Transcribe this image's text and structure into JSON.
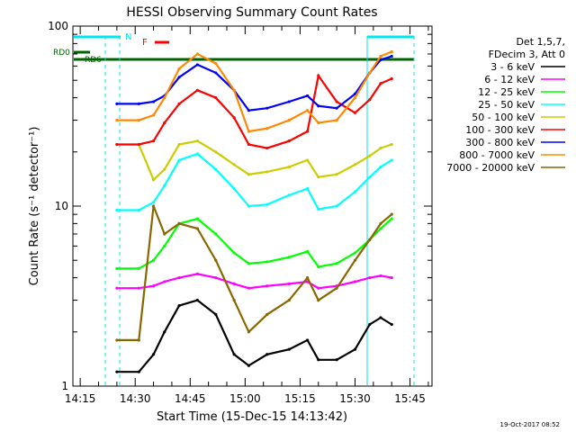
{
  "chart_data": {
    "type": "line",
    "title": "HESSI Observing Summary Count Rates",
    "xlabel": "Start Time (15-Dec-15 14:13:42)",
    "ylabel": "Count Rate (s⁻¹ detector⁻¹)",
    "yscale": "log",
    "ylim": [
      1,
      100
    ],
    "xlim_minutes_after_1413": [
      0,
      98
    ],
    "x_tick_labels": [
      "14:15",
      "14:30",
      "14:45",
      "15:00",
      "15:15",
      "15:30",
      "15:45"
    ],
    "y_tick_labels": [
      "1",
      "10",
      "100"
    ],
    "legend_position": "right",
    "legend_header": [
      "Det 1,5,7,",
      "FDecim 3, Att 0"
    ],
    "timestamp": "19-Oct-2017 08:52",
    "flag_labels": {
      "N": "N",
      "F": "F",
      "RD0": "RD0",
      "RD6": "RD6"
    },
    "x": [
      "14:25",
      "14:31",
      "14:35",
      "14:38",
      "14:42",
      "14:47",
      "14:52",
      "14:57",
      "15:01",
      "15:06",
      "15:12",
      "15:17",
      "15:20",
      "15:25",
      "15:30",
      "15:34",
      "15:37",
      "15:40"
    ],
    "series": [
      {
        "name": "3 - 6 keV",
        "color": "#000000",
        "values": [
          1.2,
          1.2,
          1.5,
          2.0,
          2.8,
          3.0,
          2.5,
          1.5,
          1.3,
          1.5,
          1.6,
          1.8,
          1.4,
          1.4,
          1.6,
          2.2,
          2.4,
          2.2
        ]
      },
      {
        "name": "6 - 12 keV",
        "color": "#ff00ff",
        "values": [
          3.5,
          3.5,
          3.6,
          3.8,
          4.0,
          4.2,
          4.0,
          3.7,
          3.5,
          3.6,
          3.7,
          3.8,
          3.5,
          3.6,
          3.8,
          4.0,
          4.1,
          4.0
        ]
      },
      {
        "name": "12 - 25 keV",
        "color": "#00ff00",
        "values": [
          4.5,
          4.5,
          5.0,
          6.0,
          8.0,
          8.5,
          7.0,
          5.5,
          4.8,
          4.9,
          5.2,
          5.6,
          4.6,
          4.8,
          5.5,
          6.5,
          7.5,
          8.5
        ]
      },
      {
        "name": "25 - 50 keV",
        "color": "#00ffff",
        "values": [
          9.5,
          9.5,
          10.5,
          13.0,
          18.0,
          19.5,
          16.0,
          12.5,
          10.0,
          10.2,
          11.5,
          12.5,
          9.6,
          10.0,
          12.0,
          14.5,
          16.5,
          18.0
        ]
      },
      {
        "name": "50 - 100 keV",
        "color": "#cccc00",
        "values": [
          22,
          22,
          14,
          16,
          22,
          23,
          20,
          17,
          15,
          15.5,
          16.5,
          18,
          14.5,
          15,
          17,
          19,
          21,
          22
        ]
      },
      {
        "name": "100 - 300 keV",
        "color": "#ff0000",
        "values": [
          22,
          22,
          23,
          29,
          37,
          44,
          40,
          31,
          22,
          21,
          23,
          26,
          53,
          38,
          33,
          39,
          48,
          51
        ]
      },
      {
        "name": "300 - 800 keV",
        "color": "#0000ff",
        "values": [
          37,
          37,
          38,
          41,
          52,
          61,
          55,
          44,
          34,
          35,
          38,
          41,
          36,
          35,
          42,
          55,
          65,
          68
        ]
      },
      {
        "name": "800 - 7000 keV",
        "color": "#ff8800",
        "values": [
          30,
          30,
          32,
          40,
          58,
          70,
          62,
          44,
          26,
          27,
          30,
          34,
          29,
          30,
          40,
          55,
          68,
          72
        ]
      },
      {
        "name": "7000 - 20000 keV",
        "color": "#886600",
        "values": [
          1.8,
          1.8,
          10,
          7,
          8,
          7.5,
          5,
          3,
          2,
          2.5,
          3,
          4,
          3,
          3.5,
          5,
          6.5,
          8,
          9
        ]
      }
    ]
  }
}
